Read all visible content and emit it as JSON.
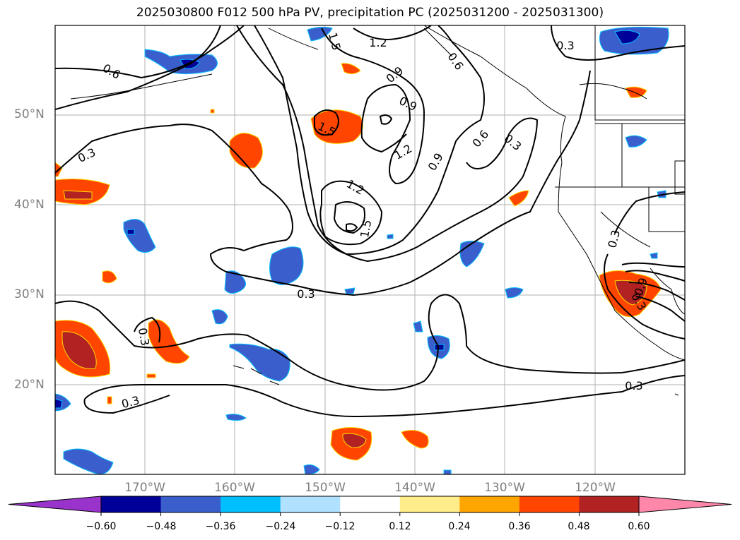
{
  "title": "2025030800 F012 500 hPa PV, precipitation PC (2025031200 - 2025031300)",
  "lat_labels": [
    "50°N",
    "40°N",
    "30°N",
    "20°N"
  ],
  "lon_labels": [
    "170°W",
    "160°W",
    "150°W",
    "140°W",
    "130°W",
    "120°W"
  ],
  "contour_labels": [
    "1.5",
    "1.2",
    "0.9",
    "0.6",
    "0.3",
    "0.3",
    "1.5",
    "1.2",
    "1.5",
    "0.9",
    "1.2",
    "0.9",
    "0.6",
    "0.3",
    "0.6",
    "0.3",
    "0.3",
    "0.3",
    "0.3",
    "0.3",
    "0.3",
    "0.9"
  ],
  "colorbar": {
    "tick_labels": [
      "−0.60",
      "−0.48",
      "−0.36",
      "−0.24",
      "−0.12",
      "0.12",
      "0.24",
      "0.36",
      "0.48",
      "0.60"
    ],
    "colors": [
      "#9933cc",
      "#000099",
      "#3a5fcd",
      "#00bfff",
      "#b0e2ff",
      "#ffffff",
      "#ffec8b",
      "#ffa500",
      "#ff4500",
      "#b22222",
      "#ff88aa"
    ]
  },
  "chart_data": {
    "type": "heatmap",
    "title": "2025030800 F012 500 hPa PV, precipitation PC (2025031200 - 2025031300)",
    "fields": {
      "shaded": "precipitation PC",
      "contours": "500 hPa PV"
    },
    "domain": {
      "lon_range": [
        -180,
        -110
      ],
      "lat_range": [
        10,
        60
      ]
    },
    "grid": true,
    "contour_levels": [
      0.3,
      0.6,
      0.9,
      1.2,
      1.5
    ],
    "colorbar_levels": [
      -0.6,
      -0.48,
      -0.36,
      -0.24,
      -0.12,
      0.12,
      0.24,
      0.36,
      0.48,
      0.6
    ],
    "colorbar_extend": "both",
    "colorbar_placement": "bottom"
  }
}
